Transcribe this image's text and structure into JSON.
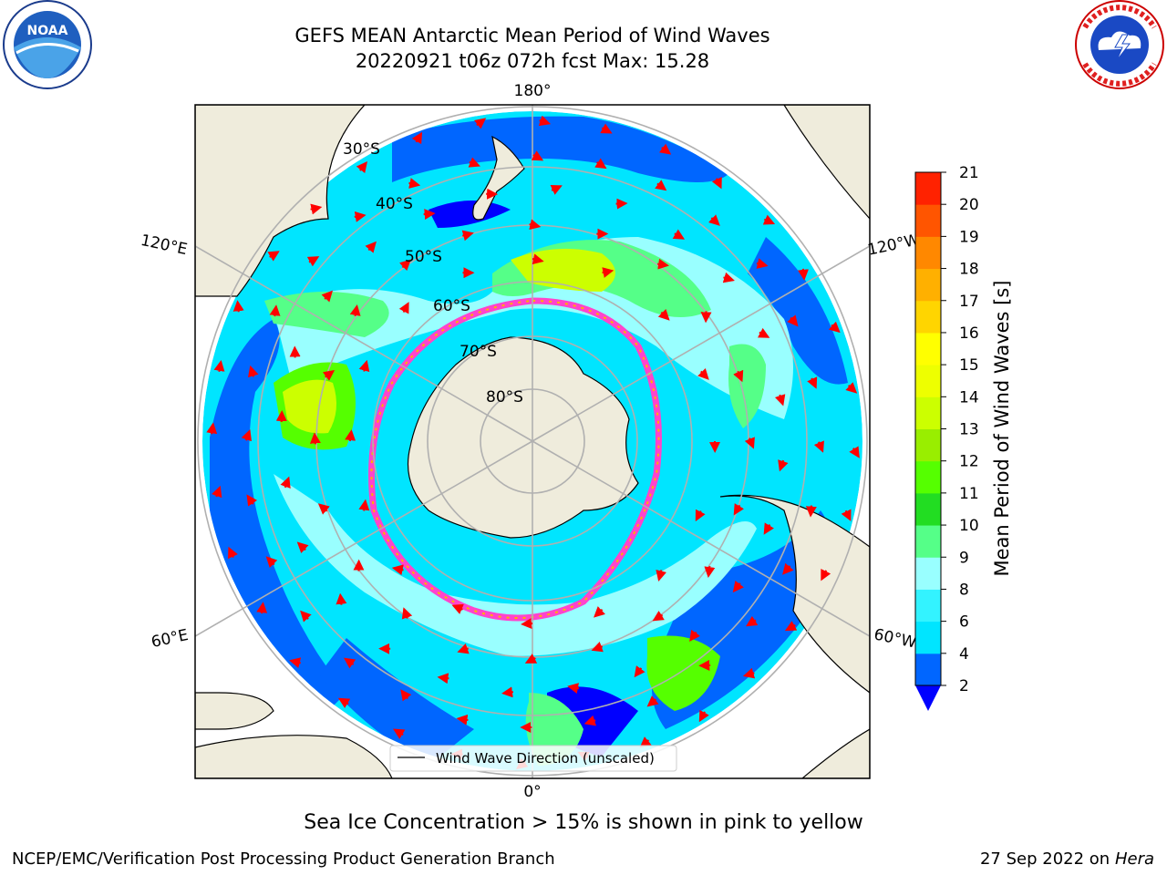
{
  "header": {
    "title_line1": "GEFS MEAN Antarctic Mean Period of Wind Waves",
    "title_line2": "20220921 t06z 072h fcst   Max: 15.28"
  },
  "logos": {
    "left": {
      "icon": "noaa-logo",
      "text": "NOAA",
      "ring_text": "NATIONAL OCEANIC AND ATMOSPHERIC ADMINISTRATION · U.S. DEPARTMENT OF COMMERCE"
    },
    "right": {
      "icon": "national-weather-service-logo",
      "ring_text": "NATIONAL WEATHER SERVICE"
    }
  },
  "map": {
    "projection": "south-polar-stereographic",
    "lon_labels": {
      "top": "180°",
      "bottom": "0°",
      "upper_left": "120°E",
      "upper_right": "120°W",
      "lower_left": "60°E",
      "lower_right": "60°W"
    },
    "lat_labels": [
      "30°S",
      "40°S",
      "50°S",
      "60°S",
      "70°S",
      "80°S"
    ],
    "legend_label": "Wind Wave Direction (unscaled)",
    "colors": {
      "land": "#efecdc",
      "ice_free_polar": "#ffffff",
      "sea_ice_edge": "#ff44cc",
      "arrow": "#ff0000",
      "gridline": "#b0b0b0"
    }
  },
  "colorbar": {
    "label": "Mean Period of Wind Waves [s]",
    "ticks": [
      "2",
      "4",
      "6",
      "8",
      "9",
      "10",
      "11",
      "12",
      "13",
      "14",
      "15",
      "16",
      "17",
      "18",
      "19",
      "20",
      "21"
    ],
    "colors": [
      "#0066ff",
      "#00e5ff",
      "#33f3ff",
      "#99ffff",
      "#55ff88",
      "#22dd22",
      "#55ff00",
      "#99ee00",
      "#ccff00",
      "#eeff00",
      "#ffff00",
      "#ffd500",
      "#ffb000",
      "#ff8800",
      "#ff5500",
      "#ff2200",
      "#ff0000"
    ],
    "extend_color": "#0000ff"
  },
  "footer": {
    "note": "Sea Ice Concentration > 15% is shown in pink to yellow",
    "credit": "NCEP/EMC/Verification Post Processing Product Generation Branch",
    "date": "27 Sep 2022 on",
    "machine": "Hera"
  }
}
